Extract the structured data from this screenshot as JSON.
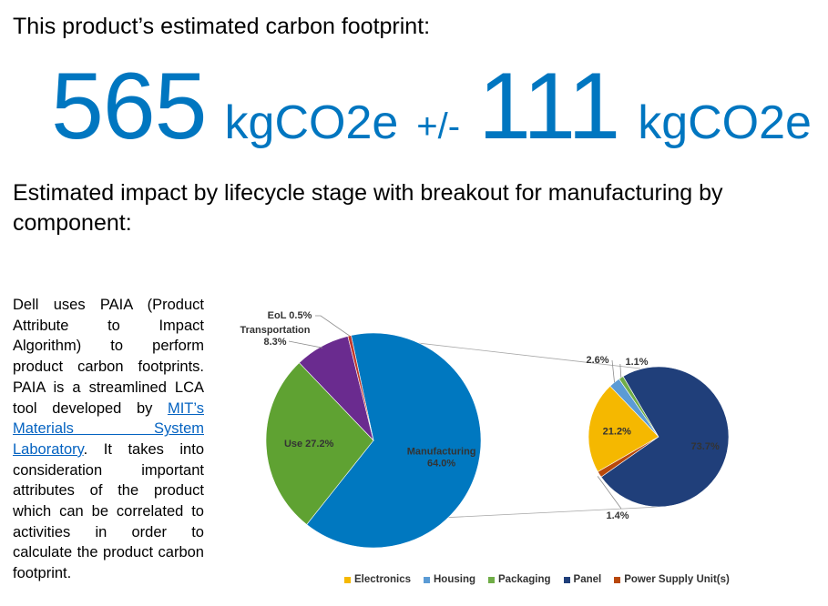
{
  "header": {
    "title": "This product’s estimated carbon footprint:",
    "value": "565",
    "unit": "kgCO2e",
    "plus_minus": "+/-",
    "uncertainty": "111",
    "uncertainty_unit": "kgCO2e"
  },
  "subheading": "Estimated impact by lifecycle stage with breakout for manufacturing by component:",
  "description": {
    "before_link": "Dell uses PAIA (Product Attribute to Impact Algorithm) to perform product carbon footprints. PAIA is a streamlined LCA tool developed by ",
    "link_text": "MIT’s Materials System Laboratory",
    "after_link": ". It takes into consideration important attributes of the product which can be correlated to activities in order to calculate the product carbon footprint."
  },
  "colors": {
    "accent": "#0076c0",
    "link": "#0563c1",
    "manufacturing": "#0078c0",
    "use": "#5fa232",
    "transportation": "#6a2b8f",
    "eol": "#c0392b",
    "electronics": "#f5b800",
    "housing": "#5b9bd5",
    "packaging": "#70ad47",
    "panel": "#203f7a",
    "power_supply": "#b8480b"
  },
  "chart_data": [
    {
      "type": "pie",
      "categories": [
        "Manufacturing",
        "Use",
        "Transportation",
        "EoL"
      ],
      "values": [
        64.0,
        27.2,
        8.3,
        0.5
      ],
      "labels": [
        "Manufacturing 64.0%",
        "Use 27.2%",
        "Transportation 8.3%",
        "EoL 0.5%"
      ]
    },
    {
      "type": "pie",
      "categories": [
        "Electronics",
        "Housing",
        "Packaging",
        "Panel",
        "Power Supply Unit(s)"
      ],
      "values": [
        21.2,
        2.6,
        1.1,
        73.7,
        1.4
      ],
      "labels": [
        "21.2%",
        "2.6%",
        "1.1%",
        "73.7%",
        "1.4%"
      ],
      "legend": [
        "Electronics",
        "Housing",
        "Packaging",
        "Panel",
        "Power Supply Unit(s)"
      ],
      "legend_position": "bottom"
    }
  ]
}
